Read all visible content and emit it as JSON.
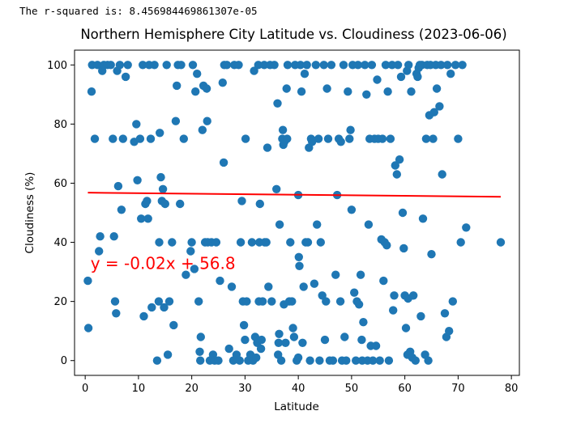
{
  "output_text": "The r-squared is: 8.456984469861307e-05",
  "chart_data": {
    "type": "scatter",
    "title": "Northern Hemisphere City Latitude vs. Cloudiness (2023-06-06)",
    "xlabel": "Latitude",
    "ylabel": "Cloudiness (%)",
    "xlim": [
      -2,
      81.5
    ],
    "ylim": [
      -5,
      105
    ],
    "xticks": [
      0,
      10,
      20,
      30,
      40,
      50,
      60,
      70,
      80
    ],
    "yticks": [
      0,
      20,
      40,
      60,
      80,
      100
    ],
    "grid": false,
    "point_color": "#1f77b4",
    "regression": {
      "slope": -0.02,
      "intercept": 56.8,
      "x_range": [
        0.5,
        78
      ],
      "y_range": [
        56.8,
        55.4
      ],
      "color": "#ff0000",
      "equation": "y = -0.02x + 56.8",
      "equation_anchor": [
        1,
        31
      ]
    },
    "points": [
      [
        0.5,
        27
      ],
      [
        0.6,
        11
      ],
      [
        1.2,
        91
      ],
      [
        1.3,
        100
      ],
      [
        1.8,
        75
      ],
      [
        2.3,
        100
      ],
      [
        2.6,
        37
      ],
      [
        2.8,
        42
      ],
      [
        3.2,
        98
      ],
      [
        3.5,
        100
      ],
      [
        4.2,
        100
      ],
      [
        4.8,
        100
      ],
      [
        5.2,
        75
      ],
      [
        5.4,
        42
      ],
      [
        5.6,
        20
      ],
      [
        5.8,
        16
      ],
      [
        6.0,
        98
      ],
      [
        6.2,
        59
      ],
      [
        6.5,
        100
      ],
      [
        6.8,
        51
      ],
      [
        7.1,
        75
      ],
      [
        7.6,
        96
      ],
      [
        8.0,
        100
      ],
      [
        9.2,
        74
      ],
      [
        9.6,
        80
      ],
      [
        9.8,
        61
      ],
      [
        10.3,
        75
      ],
      [
        10.5,
        48
      ],
      [
        10.8,
        100
      ],
      [
        11.0,
        15
      ],
      [
        11.3,
        53
      ],
      [
        11.6,
        54
      ],
      [
        11.8,
        48
      ],
      [
        12.0,
        100
      ],
      [
        12.3,
        75
      ],
      [
        12.5,
        18
      ],
      [
        13.0,
        100
      ],
      [
        13.5,
        0
      ],
      [
        13.8,
        20
      ],
      [
        13.9,
        40
      ],
      [
        14.0,
        77
      ],
      [
        14.2,
        62
      ],
      [
        14.4,
        54
      ],
      [
        14.6,
        58
      ],
      [
        14.8,
        18
      ],
      [
        15.0,
        53
      ],
      [
        15.3,
        100
      ],
      [
        15.5,
        2
      ],
      [
        15.8,
        20
      ],
      [
        16.3,
        40
      ],
      [
        16.6,
        12
      ],
      [
        17.0,
        81
      ],
      [
        17.2,
        93
      ],
      [
        17.4,
        100
      ],
      [
        17.8,
        53
      ],
      [
        18.0,
        100
      ],
      [
        18.5,
        75
      ],
      [
        18.9,
        29
      ],
      [
        19.8,
        37
      ],
      [
        20.0,
        40
      ],
      [
        20.2,
        100
      ],
      [
        20.5,
        31
      ],
      [
        20.7,
        91
      ],
      [
        21.0,
        97
      ],
      [
        21.3,
        20
      ],
      [
        21.5,
        3
      ],
      [
        21.6,
        0
      ],
      [
        21.7,
        8
      ],
      [
        22.0,
        78
      ],
      [
        22.2,
        93
      ],
      [
        22.5,
        40
      ],
      [
        22.8,
        92
      ],
      [
        22.9,
        81
      ],
      [
        23.0,
        40
      ],
      [
        23.4,
        0
      ],
      [
        23.7,
        40
      ],
      [
        24.0,
        2
      ],
      [
        24.3,
        0
      ],
      [
        24.6,
        40
      ],
      [
        25.0,
        0
      ],
      [
        25.3,
        27
      ],
      [
        25.8,
        94
      ],
      [
        26.0,
        67
      ],
      [
        26.1,
        100
      ],
      [
        26.6,
        100
      ],
      [
        27.0,
        4
      ],
      [
        27.5,
        25
      ],
      [
        27.8,
        0
      ],
      [
        28.0,
        100
      ],
      [
        28.4,
        2
      ],
      [
        28.8,
        100
      ],
      [
        29.0,
        0
      ],
      [
        29.2,
        40
      ],
      [
        29.4,
        54
      ],
      [
        29.6,
        20
      ],
      [
        29.8,
        12
      ],
      [
        30.0,
        7
      ],
      [
        30.1,
        75
      ],
      [
        30.3,
        20
      ],
      [
        30.6,
        0
      ],
      [
        31.0,
        2
      ],
      [
        31.3,
        40
      ],
      [
        31.5,
        0
      ],
      [
        31.7,
        98
      ],
      [
        31.9,
        8
      ],
      [
        32.1,
        1
      ],
      [
        32.3,
        6
      ],
      [
        32.5,
        100
      ],
      [
        32.6,
        20
      ],
      [
        32.7,
        40
      ],
      [
        32.8,
        53
      ],
      [
        33.0,
        4
      ],
      [
        33.1,
        7
      ],
      [
        33.3,
        20
      ],
      [
        33.6,
        100
      ],
      [
        33.7,
        40
      ],
      [
        34.0,
        40
      ],
      [
        34.2,
        72
      ],
      [
        34.4,
        25
      ],
      [
        34.7,
        100
      ],
      [
        35.0,
        20
      ],
      [
        35.5,
        100
      ],
      [
        35.9,
        58
      ],
      [
        36.1,
        87
      ],
      [
        36.2,
        2
      ],
      [
        36.3,
        6
      ],
      [
        36.4,
        9
      ],
      [
        36.5,
        46
      ],
      [
        36.8,
        0
      ],
      [
        37.0,
        75
      ],
      [
        37.1,
        78
      ],
      [
        37.2,
        73
      ],
      [
        37.3,
        19
      ],
      [
        37.4,
        74
      ],
      [
        37.6,
        6
      ],
      [
        37.8,
        92
      ],
      [
        37.9,
        75
      ],
      [
        38.0,
        100
      ],
      [
        38.3,
        20
      ],
      [
        38.5,
        40
      ],
      [
        38.8,
        20
      ],
      [
        39.0,
        11
      ],
      [
        39.2,
        8
      ],
      [
        39.4,
        100
      ],
      [
        39.7,
        0
      ],
      [
        40.0,
        1
      ],
      [
        40.0,
        56
      ],
      [
        40.1,
        35
      ],
      [
        40.2,
        32
      ],
      [
        40.4,
        100
      ],
      [
        40.6,
        91
      ],
      [
        40.8,
        6
      ],
      [
        41.0,
        25
      ],
      [
        41.2,
        97
      ],
      [
        41.4,
        40
      ],
      [
        41.6,
        100
      ],
      [
        41.8,
        40
      ],
      [
        42.0,
        72
      ],
      [
        42.2,
        0
      ],
      [
        42.4,
        75
      ],
      [
        42.6,
        74
      ],
      [
        43.0,
        26
      ],
      [
        43.3,
        100
      ],
      [
        43.5,
        46
      ],
      [
        43.8,
        75
      ],
      [
        44.0,
        0
      ],
      [
        44.2,
        40
      ],
      [
        44.5,
        22
      ],
      [
        44.8,
        100
      ],
      [
        45.0,
        7
      ],
      [
        45.2,
        20
      ],
      [
        45.4,
        92
      ],
      [
        45.6,
        75
      ],
      [
        45.9,
        0
      ],
      [
        46.2,
        100
      ],
      [
        46.5,
        0
      ],
      [
        47.0,
        29
      ],
      [
        47.3,
        56
      ],
      [
        47.6,
        75
      ],
      [
        47.9,
        20
      ],
      [
        48.0,
        74
      ],
      [
        48.2,
        0
      ],
      [
        48.5,
        100
      ],
      [
        48.7,
        8
      ],
      [
        49.0,
        0
      ],
      [
        49.3,
        91
      ],
      [
        49.6,
        75
      ],
      [
        49.8,
        78
      ],
      [
        50.0,
        51
      ],
      [
        50.2,
        100
      ],
      [
        50.5,
        23
      ],
      [
        50.8,
        0
      ],
      [
        51.0,
        20
      ],
      [
        51.2,
        100
      ],
      [
        51.4,
        19
      ],
      [
        51.7,
        29
      ],
      [
        51.9,
        7
      ],
      [
        52.0,
        0
      ],
      [
        52.2,
        13
      ],
      [
        52.5,
        100
      ],
      [
        52.8,
        90
      ],
      [
        53.0,
        0
      ],
      [
        53.2,
        46
      ],
      [
        53.4,
        75
      ],
      [
        53.6,
        5
      ],
      [
        53.8,
        100
      ],
      [
        54.0,
        0
      ],
      [
        54.3,
        75
      ],
      [
        54.6,
        5
      ],
      [
        54.8,
        95
      ],
      [
        55.0,
        75
      ],
      [
        55.3,
        0
      ],
      [
        55.6,
        41
      ],
      [
        55.8,
        75
      ],
      [
        56.0,
        27
      ],
      [
        56.2,
        40
      ],
      [
        56.4,
        100
      ],
      [
        56.6,
        39
      ],
      [
        56.8,
        91
      ],
      [
        57.0,
        0
      ],
      [
        57.3,
        75
      ],
      [
        57.6,
        100
      ],
      [
        57.8,
        17
      ],
      [
        58.0,
        22
      ],
      [
        58.2,
        66
      ],
      [
        58.5,
        63
      ],
      [
        58.7,
        100
      ],
      [
        59.0,
        68
      ],
      [
        59.3,
        96
      ],
      [
        59.6,
        50
      ],
      [
        59.8,
        38
      ],
      [
        60.0,
        22
      ],
      [
        60.2,
        11
      ],
      [
        60.4,
        98
      ],
      [
        60.5,
        2
      ],
      [
        60.6,
        21
      ],
      [
        60.7,
        100
      ],
      [
        61.0,
        3
      ],
      [
        61.2,
        91
      ],
      [
        61.4,
        1
      ],
      [
        61.6,
        22
      ],
      [
        62.0,
        0
      ],
      [
        62.2,
        97
      ],
      [
        62.4,
        96
      ],
      [
        62.6,
        99
      ],
      [
        62.8,
        100
      ],
      [
        63.0,
        15
      ],
      [
        63.2,
        100
      ],
      [
        63.4,
        48
      ],
      [
        63.8,
        2
      ],
      [
        64.0,
        75
      ],
      [
        64.2,
        100
      ],
      [
        64.4,
        0
      ],
      [
        64.6,
        83
      ],
      [
        64.8,
        100
      ],
      [
        65.0,
        36
      ],
      [
        65.3,
        75
      ],
      [
        65.5,
        84
      ],
      [
        65.8,
        100
      ],
      [
        66.0,
        92
      ],
      [
        66.5,
        86
      ],
      [
        66.8,
        100
      ],
      [
        67.0,
        63
      ],
      [
        67.5,
        16
      ],
      [
        67.8,
        8
      ],
      [
        68.0,
        100
      ],
      [
        68.3,
        10
      ],
      [
        68.6,
        97
      ],
      [
        69.0,
        20
      ],
      [
        69.5,
        100
      ],
      [
        70.0,
        75
      ],
      [
        70.5,
        40
      ],
      [
        70.8,
        100
      ],
      [
        71.5,
        45
      ],
      [
        78.0,
        40
      ]
    ]
  }
}
